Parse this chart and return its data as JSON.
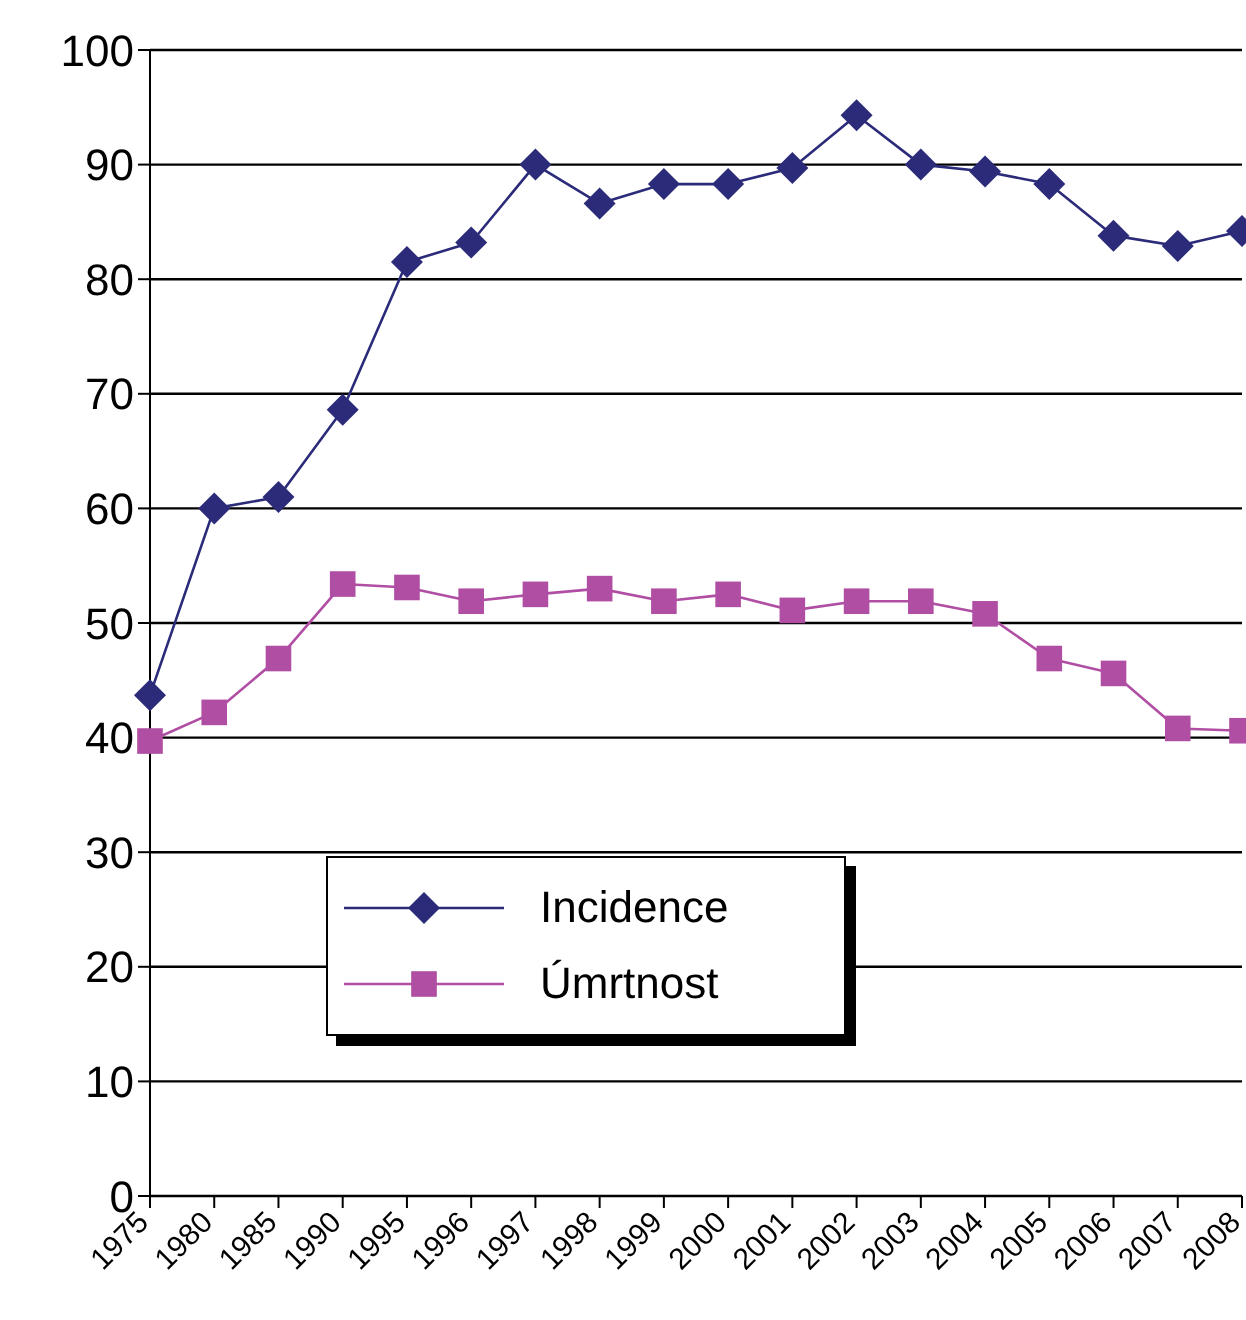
{
  "chart_data": {
    "type": "line",
    "categories": [
      "1975",
      "1980",
      "1985",
      "1990",
      "1995",
      "1996",
      "1997",
      "1998",
      "1999",
      "2000",
      "2001",
      "2002",
      "2003",
      "2004",
      "2005",
      "2006",
      "2007",
      "2008"
    ],
    "series": [
      {
        "name": "Incidence",
        "color": "#2b2b7a",
        "marker": "diamond",
        "values": [
          43.7,
          60,
          61,
          68.6,
          81.5,
          83.2,
          90,
          86.6,
          88.3,
          88.3,
          89.7,
          94.3,
          90,
          89.4,
          88.3,
          83.8,
          82.9,
          84.2
        ]
      },
      {
        "name": "Úmrtnost",
        "color": "#b04ea4",
        "marker": "square",
        "values": [
          39.7,
          42.2,
          46.9,
          53.4,
          53.1,
          51.9,
          52.5,
          53,
          51.9,
          52.5,
          51.1,
          51.9,
          51.9,
          50.8,
          46.9,
          45.6,
          40.8,
          40.6
        ]
      }
    ],
    "ylim": [
      0,
      100
    ],
    "yticks": [
      0,
      10,
      20,
      30,
      40,
      50,
      60,
      70,
      80,
      90,
      100
    ],
    "grid": "y",
    "legend": "bottom left",
    "line_style": "solid"
  }
}
